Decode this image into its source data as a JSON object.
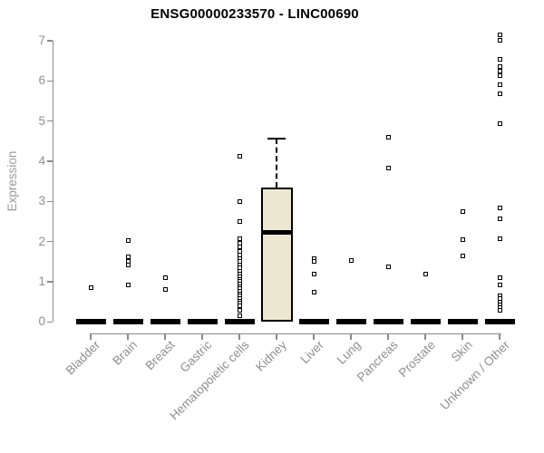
{
  "chart_data": {
    "type": "boxplot",
    "title": "ENSG00000233570 - LINC00690",
    "ylabel": "Expression",
    "xlabel": "",
    "ylim": [
      0,
      7
    ],
    "yticks": [
      0,
      1,
      2,
      3,
      4,
      5,
      6,
      7
    ],
    "grid": false,
    "legend": "none",
    "categories": [
      "Bladder",
      "Brain",
      "Breast",
      "Gastric",
      "Hematopoietic cells",
      "Kidney",
      "Liver",
      "Lung",
      "Pancreas",
      "Prostate",
      "Skin",
      "Unknown / Other"
    ],
    "boxes": [
      {
        "category": "Bladder",
        "q1": 0,
        "median": 0,
        "q3": 0,
        "whisker_low": 0,
        "whisker_high": 0,
        "outliers": [
          0.85
        ]
      },
      {
        "category": "Brain",
        "q1": 0,
        "median": 0,
        "q3": 0,
        "whisker_low": 0,
        "whisker_high": 0,
        "outliers": [
          2.02,
          1.63,
          1.5,
          1.42,
          0.93
        ]
      },
      {
        "category": "Breast",
        "q1": 0,
        "median": 0,
        "q3": 0,
        "whisker_low": 0,
        "whisker_high": 0,
        "outliers": [
          1.11,
          0.8
        ]
      },
      {
        "category": "Gastric",
        "q1": 0,
        "median": 0,
        "q3": 0,
        "whisker_low": 0,
        "whisker_high": 0,
        "outliers": []
      },
      {
        "category": "Hematopoietic cells",
        "q1": 0,
        "median": 0,
        "q3": 0,
        "whisker_low": 0,
        "whisker_high": 0,
        "outliers": [
          4.12,
          2.99,
          2.51,
          2.08,
          1.96,
          1.86,
          1.76,
          1.66,
          1.58,
          1.5,
          1.42,
          1.34,
          1.26,
          1.18,
          1.12,
          1.06,
          1.0,
          0.94,
          0.88,
          0.82,
          0.76,
          0.7,
          0.64,
          0.58,
          0.52,
          0.46,
          0.4,
          0.3,
          0.15
        ]
      },
      {
        "category": "Kidney",
        "q1": 0,
        "median": 2.22,
        "q3": 3.35,
        "whisker_low": 0,
        "whisker_high": 4.57,
        "outliers": []
      },
      {
        "category": "Liver",
        "q1": 0,
        "median": 0,
        "q3": 0,
        "whisker_low": 0,
        "whisker_high": 0,
        "outliers": [
          1.58,
          1.5,
          1.18,
          0.75
        ]
      },
      {
        "category": "Lung",
        "q1": 0,
        "median": 0,
        "q3": 0,
        "whisker_low": 0,
        "whisker_high": 0,
        "outliers": [
          1.52
        ]
      },
      {
        "category": "Pancreas",
        "q1": 0,
        "median": 0,
        "q3": 0,
        "whisker_low": 0,
        "whisker_high": 0,
        "outliers": [
          4.59,
          3.82,
          1.38
        ]
      },
      {
        "category": "Prostate",
        "q1": 0,
        "median": 0,
        "q3": 0,
        "whisker_low": 0,
        "whisker_high": 0,
        "outliers": [
          1.2
        ]
      },
      {
        "category": "Skin",
        "q1": 0,
        "median": 0,
        "q3": 0,
        "whisker_low": 0,
        "whisker_high": 0,
        "outliers": [
          2.74,
          2.04,
          1.65
        ]
      },
      {
        "category": "Unknown / Other",
        "q1": 0,
        "median": 0,
        "q3": 0,
        "whisker_low": 0,
        "whisker_high": 0,
        "outliers": [
          7.15,
          7.02,
          6.53,
          6.35,
          6.25,
          6.14,
          5.9,
          5.67,
          4.93,
          2.83,
          2.56,
          2.08,
          1.11,
          0.93,
          0.65,
          0.58,
          0.5,
          0.43,
          0.36,
          0.29
        ]
      }
    ],
    "colors": {
      "title": "#000000",
      "box_fill": "#ede8d1",
      "box_border": "#000000",
      "collapsed_bar": "#000000",
      "outlier": "#000000",
      "axis": "#8a8a8a",
      "tick_label": "#8f8f8f",
      "background": "#ffffff"
    }
  }
}
